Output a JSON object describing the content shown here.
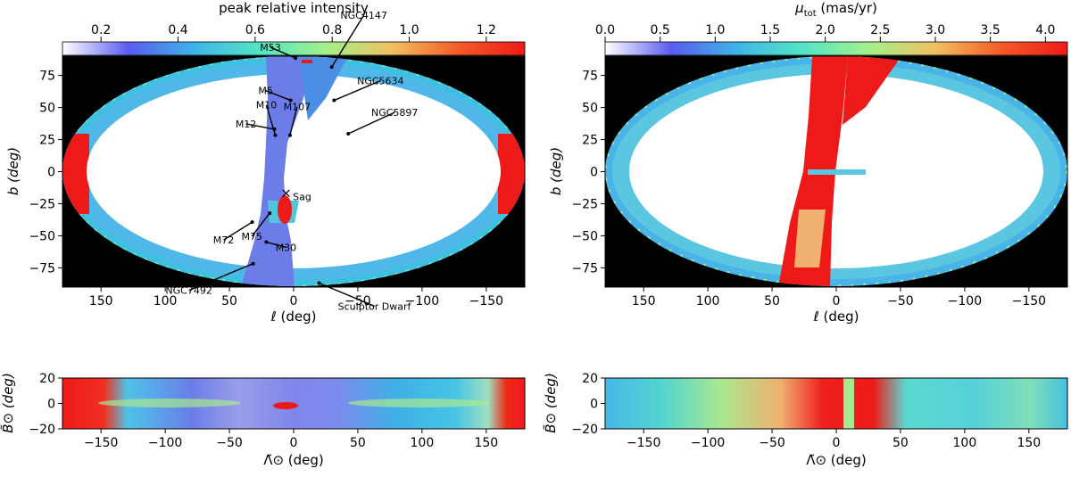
{
  "colormaps": {
    "rainbow": [
      "#ffffff",
      "#5a5cf0",
      "#3fb5e8",
      "#53e6c4",
      "#a4f08a",
      "#f0c060",
      "#f55a28",
      "#ee1a1a"
    ],
    "bg": "#000000"
  },
  "chart_data": [
    {
      "type": "heatmap",
      "panel": "top-left",
      "projection": "mollweide",
      "colorbar": {
        "label": "peak relative intensity",
        "ticks": [
          "0.2",
          "0.4",
          "0.6",
          "0.8",
          "1.0",
          "1.2"
        ],
        "range": [
          0.1,
          1.3
        ]
      },
      "xlabel": "ℓ (deg)",
      "ylabel": "b (deg)",
      "xticks": [
        "150",
        "100",
        "50",
        "0",
        "−50",
        "−100",
        "−150"
      ],
      "yticks": [
        "75",
        "50",
        "25",
        "0",
        "−25",
        "−50",
        "−75"
      ],
      "xlim": [
        180,
        -180
      ],
      "ylim": [
        -90,
        90
      ],
      "annotations": [
        {
          "label": "M53",
          "l": -8,
          "b": 86
        },
        {
          "label": "NGC4147",
          "l": -70,
          "b": 75
        },
        {
          "label": "M5",
          "l": 3,
          "b": 47
        },
        {
          "label": "NGC5634",
          "l": -40,
          "b": 47
        },
        {
          "label": "M12",
          "l": 16,
          "b": 27
        },
        {
          "label": "NGC5897",
          "l": -45,
          "b": 24
        },
        {
          "label": "M10",
          "l": 15,
          "b": 23
        },
        {
          "label": "M107",
          "l": 3,
          "b": 23
        },
        {
          "label": "Sag",
          "l": 6,
          "b": -14
        },
        {
          "label": "M72",
          "l": 36,
          "b": -33
        },
        {
          "label": "M75",
          "l": 20,
          "b": -27
        },
        {
          "label": "M30",
          "l": 27,
          "b": -47
        },
        {
          "label": "NGC7492",
          "l": 53,
          "b": -64
        },
        {
          "label": "Sculptor Dwarf",
          "l": -85,
          "b": -84
        }
      ]
    },
    {
      "type": "heatmap",
      "panel": "top-right",
      "projection": "mollweide",
      "colorbar": {
        "label_main": "μ",
        "label_sub": "tot",
        "label_unit": " (mas/yr)",
        "ticks": [
          "0.0",
          "0.5",
          "1.0",
          "1.5",
          "2.0",
          "2.5",
          "3.0",
          "3.5",
          "4.0"
        ],
        "range": [
          0,
          4.2
        ]
      },
      "xlabel": "ℓ (deg)",
      "ylabel": "b (deg)",
      "xticks": [
        "150",
        "100",
        "50",
        "0",
        "−50",
        "−100",
        "−150"
      ],
      "yticks": [
        "75",
        "50",
        "25",
        "0",
        "−25",
        "−50",
        "−75"
      ],
      "xlim": [
        180,
        -180
      ],
      "ylim": [
        -90,
        90
      ]
    },
    {
      "type": "heatmap",
      "panel": "bottom-left",
      "xlabel": "Λ̃⊙ (deg)",
      "ylabel": "B̃⊙ (deg)",
      "xticks": [
        "−150",
        "−100",
        "−50",
        "0",
        "50",
        "100",
        "150"
      ],
      "yticks": [
        "20",
        "0",
        "−20"
      ],
      "xlim": [
        -180,
        180
      ],
      "ylim": [
        -20,
        20
      ]
    },
    {
      "type": "heatmap",
      "panel": "bottom-right",
      "xlabel": "Λ̃⊙ (deg)",
      "ylabel": "B̃⊙ (deg)",
      "xticks": [
        "−150",
        "−100",
        "−50",
        "0",
        "50",
        "100",
        "150"
      ],
      "yticks": [
        "20",
        "0",
        "−20"
      ],
      "xlim": [
        -180,
        180
      ],
      "ylim": [
        -20,
        20
      ]
    }
  ]
}
